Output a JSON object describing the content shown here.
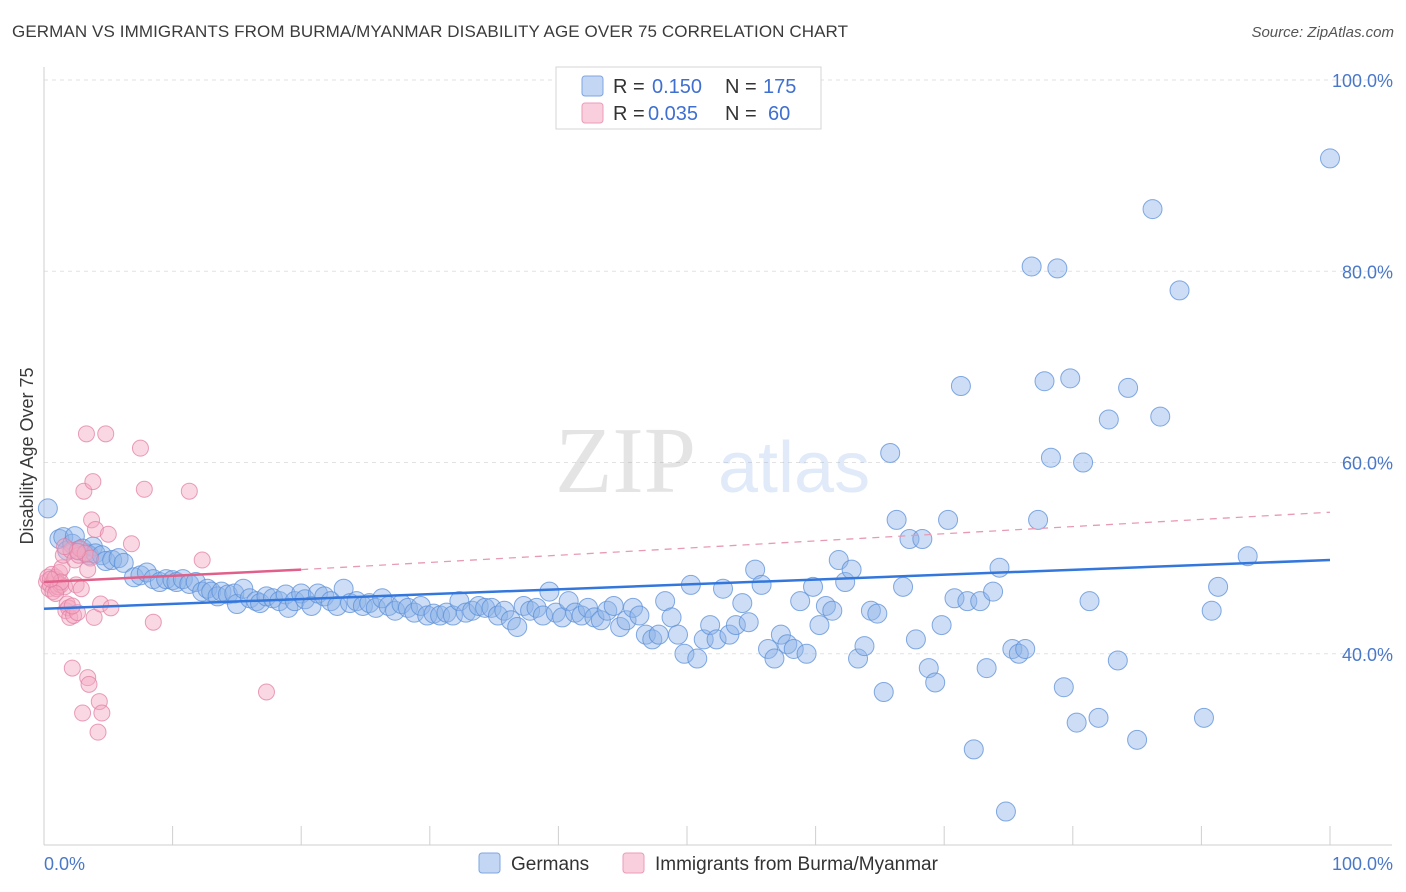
{
  "title": "GERMAN VS IMMIGRANTS FROM BURMA/MYANMAR DISABILITY AGE OVER 75 CORRELATION CHART",
  "source": "Source: ZipAtlas.com",
  "watermark": {
    "zip": "ZIP",
    "atlas": "atlas"
  },
  "legend": {
    "rows": [
      {
        "r_label": "R =",
        "r_value": "0.150",
        "n_label": "N =",
        "n_value": "175",
        "color": "#8fb4e8"
      },
      {
        "r_label": "R =",
        "r_value": "0.035",
        "n_label": "N =",
        "n_value": "60",
        "color": "#f4a9c2"
      }
    ]
  },
  "bottom_legend": [
    {
      "label": "Germans",
      "color": "#8fb4e8"
    },
    {
      "label": "Immigrants from Burma/Myanmar",
      "color": "#f4a9c2"
    }
  ],
  "chart_data": {
    "type": "scatter",
    "ylabel": "Disability Age Over 75",
    "xlabel": "",
    "xlim": [
      0,
      100
    ],
    "ylim": [
      20,
      100
    ],
    "x_tick_labels": [
      "0.0%",
      "100.0%"
    ],
    "y_tick_labels": [
      "40.0%",
      "60.0%",
      "80.0%",
      "100.0%"
    ],
    "y_ticks": [
      40,
      60,
      80,
      100
    ],
    "grid": "dashed horizontal",
    "legend_position": "top-center",
    "series": [
      {
        "name": "Germans",
        "color": "#8fb4e8",
        "edge": "#5b8fd8",
        "trend": {
          "x0": 0,
          "y0": 44.7,
          "x1": 100,
          "y1": 49.8,
          "color": "#3377dd"
        },
        "points": [
          [
            0.3,
            55.2
          ],
          [
            1.2,
            52.0
          ],
          [
            1.5,
            52.2
          ],
          [
            1.8,
            50.8
          ],
          [
            2.2,
            51.5
          ],
          [
            2.4,
            52.3
          ],
          [
            2.7,
            50.8
          ],
          [
            3.0,
            51.0
          ],
          [
            3.3,
            50.5
          ],
          [
            3.5,
            50.3
          ],
          [
            3.8,
            51.2
          ],
          [
            4.0,
            50.5
          ],
          [
            4.5,
            50.3
          ],
          [
            4.8,
            49.7
          ],
          [
            5.3,
            49.8
          ],
          [
            5.8,
            50.0
          ],
          [
            6.2,
            49.5
          ],
          [
            7.0,
            48.0
          ],
          [
            7.5,
            48.2
          ],
          [
            8.0,
            48.5
          ],
          [
            8.5,
            47.8
          ],
          [
            9.0,
            47.5
          ],
          [
            9.5,
            47.8
          ],
          [
            10.0,
            47.7
          ],
          [
            10.3,
            47.5
          ],
          [
            10.8,
            47.8
          ],
          [
            11.3,
            47.3
          ],
          [
            11.8,
            47.5
          ],
          [
            12.3,
            46.5
          ],
          [
            12.7,
            46.8
          ],
          [
            13.0,
            46.5
          ],
          [
            13.5,
            46.0
          ],
          [
            13.8,
            46.5
          ],
          [
            14.3,
            46.2
          ],
          [
            14.8,
            46.3
          ],
          [
            15.0,
            45.2
          ],
          [
            15.5,
            46.8
          ],
          [
            16.0,
            45.8
          ],
          [
            16.5,
            45.5
          ],
          [
            16.8,
            45.3
          ],
          [
            17.3,
            46.0
          ],
          [
            17.8,
            45.8
          ],
          [
            18.3,
            45.5
          ],
          [
            18.8,
            46.2
          ],
          [
            19.0,
            44.8
          ],
          [
            19.5,
            45.5
          ],
          [
            20.0,
            46.3
          ],
          [
            20.3,
            45.7
          ],
          [
            20.8,
            45.0
          ],
          [
            21.3,
            46.3
          ],
          [
            21.8,
            46.0
          ],
          [
            22.3,
            45.5
          ],
          [
            22.8,
            45.0
          ],
          [
            23.3,
            46.8
          ],
          [
            23.8,
            45.3
          ],
          [
            24.3,
            45.5
          ],
          [
            24.8,
            45.0
          ],
          [
            25.3,
            45.3
          ],
          [
            25.8,
            44.8
          ],
          [
            26.3,
            45.8
          ],
          [
            26.8,
            45.0
          ],
          [
            27.3,
            44.5
          ],
          [
            27.8,
            45.2
          ],
          [
            28.3,
            44.8
          ],
          [
            28.8,
            44.3
          ],
          [
            29.3,
            45.0
          ],
          [
            29.8,
            44.0
          ],
          [
            30.3,
            44.2
          ],
          [
            30.8,
            44.0
          ],
          [
            31.3,
            44.3
          ],
          [
            31.8,
            44.0
          ],
          [
            32.3,
            45.5
          ],
          [
            32.8,
            44.3
          ],
          [
            33.3,
            44.5
          ],
          [
            33.8,
            45.0
          ],
          [
            34.3,
            44.8
          ],
          [
            34.8,
            44.8
          ],
          [
            35.3,
            44.0
          ],
          [
            35.8,
            44.5
          ],
          [
            36.3,
            43.5
          ],
          [
            36.8,
            42.8
          ],
          [
            37.3,
            45.0
          ],
          [
            37.8,
            44.5
          ],
          [
            38.3,
            44.8
          ],
          [
            38.8,
            44.0
          ],
          [
            39.3,
            46.5
          ],
          [
            39.8,
            44.3
          ],
          [
            40.3,
            43.8
          ],
          [
            40.8,
            45.5
          ],
          [
            41.3,
            44.3
          ],
          [
            41.8,
            44.0
          ],
          [
            42.3,
            44.8
          ],
          [
            42.8,
            43.8
          ],
          [
            43.3,
            43.5
          ],
          [
            43.8,
            44.5
          ],
          [
            44.3,
            45.0
          ],
          [
            44.8,
            42.8
          ],
          [
            45.3,
            43.5
          ],
          [
            45.8,
            44.8
          ],
          [
            46.3,
            44.0
          ],
          [
            46.8,
            42.0
          ],
          [
            47.3,
            41.5
          ],
          [
            47.8,
            42.0
          ],
          [
            48.3,
            45.5
          ],
          [
            48.8,
            43.8
          ],
          [
            49.3,
            42.0
          ],
          [
            49.8,
            40.0
          ],
          [
            50.3,
            47.2
          ],
          [
            50.8,
            39.5
          ],
          [
            51.3,
            41.5
          ],
          [
            51.8,
            43.0
          ],
          [
            52.3,
            41.5
          ],
          [
            52.8,
            46.8
          ],
          [
            53.3,
            42.0
          ],
          [
            53.8,
            43.0
          ],
          [
            54.3,
            45.3
          ],
          [
            54.8,
            43.3
          ],
          [
            55.3,
            48.8
          ],
          [
            55.8,
            47.2
          ],
          [
            56.3,
            40.5
          ],
          [
            56.8,
            39.5
          ],
          [
            57.3,
            42.0
          ],
          [
            57.8,
            41.0
          ],
          [
            58.3,
            40.5
          ],
          [
            58.8,
            45.5
          ],
          [
            59.3,
            40.0
          ],
          [
            59.8,
            47.0
          ],
          [
            60.3,
            43.0
          ],
          [
            60.8,
            45.0
          ],
          [
            61.3,
            44.5
          ],
          [
            61.8,
            49.8
          ],
          [
            62.3,
            47.5
          ],
          [
            62.8,
            48.8
          ],
          [
            63.3,
            39.5
          ],
          [
            63.8,
            40.8
          ],
          [
            64.3,
            44.5
          ],
          [
            64.8,
            44.2
          ],
          [
            65.3,
            36.0
          ],
          [
            65.8,
            61.0
          ],
          [
            66.3,
            54.0
          ],
          [
            66.8,
            47.0
          ],
          [
            67.3,
            52.0
          ],
          [
            67.8,
            41.5
          ],
          [
            68.3,
            52.0
          ],
          [
            68.8,
            38.5
          ],
          [
            69.3,
            37.0
          ],
          [
            69.8,
            43.0
          ],
          [
            70.3,
            54.0
          ],
          [
            70.8,
            45.8
          ],
          [
            71.3,
            68.0
          ],
          [
            71.8,
            45.5
          ],
          [
            72.3,
            30.0
          ],
          [
            72.8,
            45.5
          ],
          [
            73.3,
            38.5
          ],
          [
            73.8,
            46.5
          ],
          [
            74.3,
            49.0
          ],
          [
            74.8,
            23.5
          ],
          [
            75.3,
            40.5
          ],
          [
            75.8,
            40.0
          ],
          [
            76.3,
            40.5
          ],
          [
            76.8,
            80.5
          ],
          [
            77.3,
            54.0
          ],
          [
            77.8,
            68.5
          ],
          [
            78.3,
            60.5
          ],
          [
            78.8,
            80.3
          ],
          [
            79.3,
            36.5
          ],
          [
            79.8,
            68.8
          ],
          [
            80.3,
            32.8
          ],
          [
            80.8,
            60.0
          ],
          [
            81.3,
            45.5
          ],
          [
            82.0,
            33.3
          ],
          [
            82.8,
            64.5
          ],
          [
            83.5,
            39.3
          ],
          [
            84.3,
            67.8
          ],
          [
            85.0,
            31.0
          ],
          [
            86.2,
            86.5
          ],
          [
            86.8,
            64.8
          ],
          [
            88.3,
            78.0
          ],
          [
            90.2,
            33.3
          ],
          [
            90.8,
            44.5
          ],
          [
            91.3,
            47.0
          ],
          [
            93.6,
            50.2
          ],
          [
            100.0,
            91.8
          ]
        ]
      },
      {
        "name": "Immigrants from Burma/Myanmar",
        "color": "#f4a9c2",
        "edge": "#e27fa4",
        "trend": {
          "x0": 0,
          "y0": 47.5,
          "x1": 20,
          "y1": 48.8,
          "color": "#e0608a"
        },
        "trend_dashed": {
          "x0": 20,
          "y0": 48.8,
          "x1": 100,
          "y1": 54.8,
          "color": "#e89ab5"
        },
        "points": [
          [
            0.2,
            47.5
          ],
          [
            0.3,
            48.0
          ],
          [
            0.4,
            46.8
          ],
          [
            0.5,
            47.2
          ],
          [
            0.6,
            48.3
          ],
          [
            0.7,
            46.5
          ],
          [
            0.8,
            47.8
          ],
          [
            0.9,
            48.0
          ],
          [
            1.0,
            46.8
          ],
          [
            1.1,
            47.0
          ],
          [
            1.2,
            48.5
          ],
          [
            1.3,
            47.2
          ],
          [
            1.4,
            49.0
          ],
          [
            1.5,
            50.3
          ],
          [
            1.6,
            47.0
          ],
          [
            1.7,
            44.5
          ],
          [
            1.8,
            45.2
          ],
          [
            1.9,
            44.8
          ],
          [
            2.0,
            43.8
          ],
          [
            2.1,
            50.8
          ],
          [
            2.2,
            38.5
          ],
          [
            2.3,
            44.0
          ],
          [
            2.4,
            49.8
          ],
          [
            2.5,
            47.2
          ],
          [
            2.6,
            44.3
          ],
          [
            2.7,
            50.3
          ],
          [
            2.8,
            51.0
          ],
          [
            2.9,
            46.8
          ],
          [
            3.0,
            33.8
          ],
          [
            3.1,
            57.0
          ],
          [
            3.2,
            50.5
          ],
          [
            3.3,
            63.0
          ],
          [
            3.4,
            37.5
          ],
          [
            3.5,
            36.8
          ],
          [
            3.6,
            50.0
          ],
          [
            3.7,
            54.0
          ],
          [
            3.8,
            58.0
          ],
          [
            3.9,
            43.8
          ],
          [
            4.0,
            53.0
          ],
          [
            4.2,
            31.8
          ],
          [
            4.3,
            35.0
          ],
          [
            4.4,
            45.2
          ],
          [
            4.5,
            33.8
          ],
          [
            4.8,
            63.0
          ],
          [
            5.0,
            52.5
          ],
          [
            5.2,
            44.8
          ],
          [
            6.8,
            51.5
          ],
          [
            7.5,
            61.5
          ],
          [
            7.8,
            57.2
          ],
          [
            8.5,
            43.3
          ],
          [
            11.3,
            57.0
          ],
          [
            12.3,
            49.8
          ],
          [
            17.3,
            36.0
          ],
          [
            1.3,
            47.5
          ],
          [
            0.9,
            46.3
          ],
          [
            2.6,
            50.7
          ],
          [
            3.4,
            48.8
          ],
          [
            1.6,
            51.2
          ],
          [
            0.5,
            47.8
          ],
          [
            2.2,
            45.0
          ]
        ]
      }
    ]
  }
}
